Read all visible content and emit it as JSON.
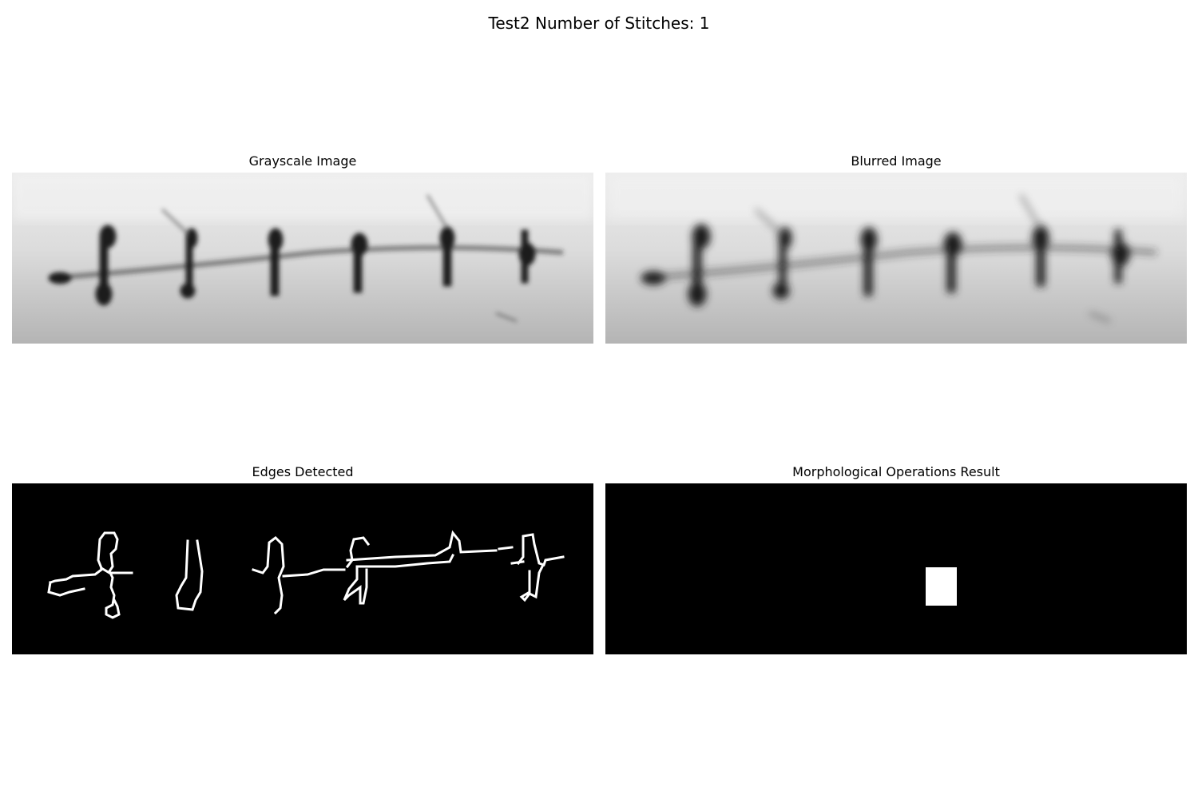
{
  "figure": {
    "title": "Test2 Number of Stitches: 1"
  },
  "panels": {
    "grayscale": {
      "title": "Grayscale Image"
    },
    "blurred": {
      "title": "Blurred Image"
    },
    "edges": {
      "title": "Edges Detected"
    },
    "morph": {
      "title": "Morphological Operations Result"
    }
  }
}
